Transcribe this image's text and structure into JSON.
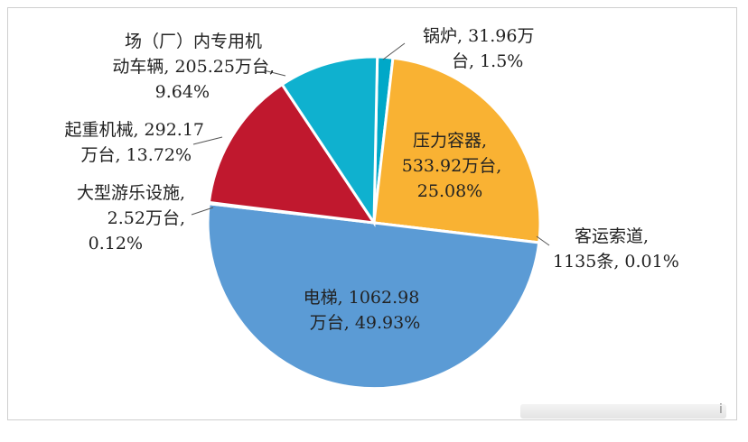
{
  "chart_data": {
    "type": "pie",
    "title": "",
    "slices": [
      {
        "label": "锅炉, 31.96万台, 1.5%",
        "line1": "锅炉, 31.96万",
        "line2": "台, 1.5%",
        "value": 1.5,
        "color": "#00a8c8"
      },
      {
        "label": "压力容器, 533.92万台, 25.08%",
        "line1": "压力容器,",
        "line2": "533.92万台,",
        "line3": "25.08%",
        "value": 25.08,
        "color": "#f9b233"
      },
      {
        "label": "客运索道, 1135条, 0.01%",
        "line1": "客运索道,",
        "line2": "1135条, 0.01%",
        "value": 0.01,
        "color": "#ff9f2a"
      },
      {
        "label": "电梯, 1062.98万台, 49.93%",
        "line1": "电梯, 1062.98",
        "line2": "万台, 49.93%",
        "value": 49.93,
        "color": "#5b9bd5"
      },
      {
        "label": "大型游乐设施, 2.52万台, 0.12%",
        "line1": "大型游乐设施,",
        "line2": "2.52万台,",
        "line3": "0.12%",
        "value": 0.12,
        "color": "#ff7043"
      },
      {
        "label": "起重机械, 292.17万台, 13.72%",
        "line1": "起重机械, 292.17",
        "line2": "万台, 13.72%",
        "value": 13.72,
        "color": "#c0182e"
      },
      {
        "label": "场（厂）内专用机动车辆, 205.25万台, 9.64%",
        "line1": "场（厂）内专用机",
        "line2": "动车辆, 205.25万台,",
        "line3": "9.64%",
        "value": 9.64,
        "color": "#0fb1cf"
      }
    ]
  }
}
